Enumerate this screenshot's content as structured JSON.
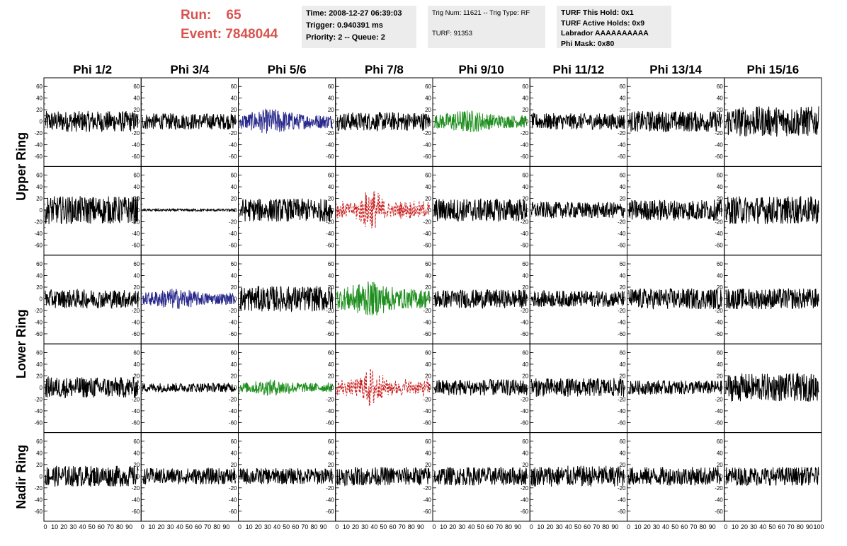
{
  "header": {
    "run_label": "Run:",
    "run_value": "65",
    "event_label": "Event:",
    "event_value": "7848044"
  },
  "info_box_1": {
    "time": "Time: 2008-12-27 06:39:03",
    "trigger": "Trigger: 0.940391 ms",
    "priority": "Priority: 2 -- Queue: 2"
  },
  "info_box_2": {
    "trig": "Trig Num: 11621 -- Trig Type: RF",
    "turf": "TURF: 91353"
  },
  "info_box_3": {
    "this_hold": "TURF This Hold: 0x1",
    "active_holds": "TURF Active Holds: 0x9",
    "labrador": "Labrador AAAAAAAAAA",
    "phi_mask": "Phi Mask: 0x80"
  },
  "colors": {
    "normal": "#000000",
    "blue": "#2a2a8c",
    "green": "#1f8f1f",
    "red": "#cc2222",
    "header_red": "#d9534f",
    "info_bg": "#ececec"
  },
  "chart_data": {
    "type": "line",
    "columns": [
      "Phi 1/2",
      "Phi 3/4",
      "Phi 5/6",
      "Phi 7/8",
      "Phi 9/10",
      "Phi 11/12",
      "Phi 13/14",
      "Phi 15/16"
    ],
    "rows": [
      "Upper Ring",
      "Upper Ring",
      "Lower Ring",
      "Lower Ring",
      "Nadir Ring"
    ],
    "row_groups": [
      {
        "label": "Upper Ring",
        "rows": [
          0,
          1
        ]
      },
      {
        "label": "Lower Ring",
        "rows": [
          2,
          3
        ]
      },
      {
        "label": "Nadir Ring",
        "rows": [
          4
        ]
      }
    ],
    "xlim": [
      0,
      100
    ],
    "ylim": [
      -70,
      70
    ],
    "yticks": [
      -60,
      -40,
      -20,
      0,
      20,
      40,
      60
    ],
    "xticks": [
      0,
      10,
      20,
      30,
      40,
      50,
      60,
      70,
      80,
      90,
      100
    ],
    "xtick_labels": [
      "0",
      "10",
      "20",
      "30",
      "40",
      "50",
      "60",
      "70",
      "80",
      "90",
      "100"
    ],
    "panel_styles": [
      [
        "normal",
        "normal",
        "blue",
        "normal",
        "green",
        "normal",
        "normal",
        "normal"
      ],
      [
        "normal",
        "normal",
        "normal",
        "red-dashed",
        "normal",
        "normal",
        "normal",
        "normal"
      ],
      [
        "normal",
        "blue",
        "normal",
        "green",
        "normal",
        "normal",
        "normal",
        "normal"
      ],
      [
        "normal",
        "normal",
        "green",
        "red-dashed",
        "normal",
        "normal",
        "normal",
        "normal"
      ],
      [
        "normal",
        "normal",
        "normal",
        "normal",
        "normal",
        "normal",
        "normal",
        "normal"
      ]
    ],
    "panel_amplitudes": [
      [
        18,
        14,
        22,
        16,
        20,
        14,
        18,
        26
      ],
      [
        24,
        2,
        20,
        36,
        20,
        14,
        18,
        24
      ],
      [
        16,
        18,
        22,
        30,
        16,
        14,
        18,
        18
      ],
      [
        18,
        8,
        14,
        34,
        14,
        16,
        12,
        24
      ],
      [
        18,
        14,
        14,
        16,
        16,
        18,
        16,
        16
      ]
    ],
    "samples_per_trace": 260
  }
}
